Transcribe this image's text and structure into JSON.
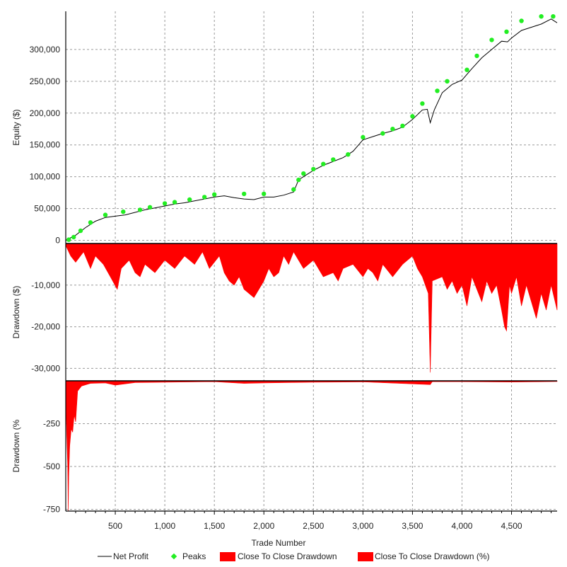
{
  "chart_data": {
    "type": "line",
    "xlabel": "Trade Number",
    "xlim": [
      0,
      4960
    ],
    "xticks": [
      500,
      1000,
      1500,
      2000,
      2500,
      3000,
      3500,
      4000,
      4500
    ],
    "xtick_labels": [
      "500",
      "1,000",
      "1,500",
      "2,000",
      "2,500",
      "3,000",
      "3,500",
      "4,000",
      "4,500"
    ],
    "legend": {
      "placement": "bottom",
      "entries": [
        "Net Profit",
        "Peaks",
        "Close To Close Drawdown",
        "Close To Close Drawdown (%)"
      ]
    },
    "colors": {
      "net_profit": "#000000",
      "peaks": "#22ee22",
      "drawdown": "#ff0000"
    },
    "panels": [
      {
        "ylabel": "Equity ($)",
        "ylim": [
          -5000,
          360000
        ],
        "yticks": [
          0,
          50000,
          100000,
          150000,
          200000,
          250000,
          300000
        ],
        "ytick_labels": [
          "0",
          "50,000",
          "100,000",
          "150,000",
          "200,000",
          "250,000",
          "300,000"
        ],
        "series": [
          {
            "name": "Net Profit",
            "type": "line",
            "points": [
              [
                0,
                0
              ],
              [
                100,
                8000
              ],
              [
                200,
                20000
              ],
              [
                300,
                30000
              ],
              [
                400,
                36000
              ],
              [
                500,
                38000
              ],
              [
                600,
                40000
              ],
              [
                700,
                44000
              ],
              [
                800,
                48000
              ],
              [
                900,
                51000
              ],
              [
                1000,
                54000
              ],
              [
                1100,
                57000
              ],
              [
                1200,
                59000
              ],
              [
                1300,
                62000
              ],
              [
                1400,
                65000
              ],
              [
                1500,
                68000
              ],
              [
                1600,
                70000
              ],
              [
                1700,
                67000
              ],
              [
                1800,
                65000
              ],
              [
                1900,
                64000
              ],
              [
                2000,
                68000
              ],
              [
                2100,
                68000
              ],
              [
                2200,
                71000
              ],
              [
                2300,
                76000
              ],
              [
                2350,
                95000
              ],
              [
                2400,
                100000
              ],
              [
                2500,
                110000
              ],
              [
                2600,
                118000
              ],
              [
                2700,
                124000
              ],
              [
                2800,
                130000
              ],
              [
                2900,
                140000
              ],
              [
                3000,
                158000
              ],
              [
                3100,
                163000
              ],
              [
                3200,
                168000
              ],
              [
                3300,
                172000
              ],
              [
                3400,
                178000
              ],
              [
                3500,
                190000
              ],
              [
                3600,
                205000
              ],
              [
                3650,
                206000
              ],
              [
                3680,
                185000
              ],
              [
                3720,
                205000
              ],
              [
                3800,
                232000
              ],
              [
                3900,
                245000
              ],
              [
                4000,
                252000
              ],
              [
                4100,
                270000
              ],
              [
                4200,
                287000
              ],
              [
                4300,
                300000
              ],
              [
                4400,
                313000
              ],
              [
                4460,
                312000
              ],
              [
                4500,
                318000
              ],
              [
                4600,
                330000
              ],
              [
                4700,
                335000
              ],
              [
                4800,
                340000
              ],
              [
                4900,
                348000
              ],
              [
                4960,
                342000
              ]
            ]
          },
          {
            "name": "Peaks",
            "type": "scatter",
            "points": [
              [
                30,
                1000
              ],
              [
                80,
                5000
              ],
              [
                150,
                15000
              ],
              [
                250,
                28000
              ],
              [
                400,
                40000
              ],
              [
                580,
                45000
              ],
              [
                750,
                48000
              ],
              [
                850,
                52000
              ],
              [
                1000,
                58000
              ],
              [
                1100,
                60000
              ],
              [
                1250,
                64000
              ],
              [
                1400,
                68000
              ],
              [
                1500,
                72000
              ],
              [
                1800,
                73000
              ],
              [
                2000,
                73000
              ],
              [
                2300,
                80000
              ],
              [
                2350,
                95000
              ],
              [
                2400,
                105000
              ],
              [
                2500,
                112000
              ],
              [
                2600,
                120000
              ],
              [
                2700,
                127000
              ],
              [
                2850,
                135000
              ],
              [
                3000,
                162000
              ],
              [
                3200,
                168000
              ],
              [
                3300,
                175000
              ],
              [
                3400,
                180000
              ],
              [
                3500,
                195000
              ],
              [
                3600,
                215000
              ],
              [
                3750,
                235000
              ],
              [
                3850,
                250000
              ],
              [
                4050,
                268000
              ],
              [
                4150,
                290000
              ],
              [
                4300,
                315000
              ],
              [
                4450,
                328000
              ],
              [
                4600,
                345000
              ],
              [
                4800,
                352000
              ],
              [
                4920,
                352000
              ]
            ]
          }
        ]
      },
      {
        "ylabel": "Drawdown ($)",
        "ylim": [
          -33000,
          0
        ],
        "yticks": [
          -10000,
          -20000,
          -30000
        ],
        "ytick_labels": [
          "-10,000",
          "-20,000",
          "-30,000"
        ],
        "series": [
          {
            "name": "Close To Close Drawdown",
            "type": "area",
            "points": [
              [
                0,
                -500
              ],
              [
                50,
                -3000
              ],
              [
                100,
                -4500
              ],
              [
                180,
                -2000
              ],
              [
                250,
                -6000
              ],
              [
                300,
                -3000
              ],
              [
                380,
                -5000
              ],
              [
                450,
                -8000
              ],
              [
                520,
                -11000
              ],
              [
                560,
                -6000
              ],
              [
                640,
                -4000
              ],
              [
                700,
                -7000
              ],
              [
                750,
                -8000
              ],
              [
                800,
                -5000
              ],
              [
                900,
                -7000
              ],
              [
                1000,
                -4000
              ],
              [
                1100,
                -6000
              ],
              [
                1200,
                -3000
              ],
              [
                1300,
                -5000
              ],
              [
                1380,
                -2000
              ],
              [
                1450,
                -6000
              ],
              [
                1550,
                -3000
              ],
              [
                1600,
                -7000
              ],
              [
                1650,
                -9000
              ],
              [
                1700,
                -10000
              ],
              [
                1750,
                -8000
              ],
              [
                1800,
                -11000
              ],
              [
                1850,
                -12000
              ],
              [
                1900,
                -13000
              ],
              [
                1950,
                -11000
              ],
              [
                2000,
                -9000
              ],
              [
                2050,
                -6000
              ],
              [
                2100,
                -8000
              ],
              [
                2150,
                -7000
              ],
              [
                2200,
                -3000
              ],
              [
                2250,
                -5000
              ],
              [
                2300,
                -2000
              ],
              [
                2400,
                -6000
              ],
              [
                2500,
                -4000
              ],
              [
                2600,
                -8000
              ],
              [
                2700,
                -7000
              ],
              [
                2750,
                -9000
              ],
              [
                2800,
                -6000
              ],
              [
                2900,
                -5000
              ],
              [
                3000,
                -8000
              ],
              [
                3050,
                -6000
              ],
              [
                3100,
                -7000
              ],
              [
                3150,
                -9000
              ],
              [
                3200,
                -5000
              ],
              [
                3300,
                -8000
              ],
              [
                3400,
                -5000
              ],
              [
                3500,
                -3000
              ],
              [
                3550,
                -6000
              ],
              [
                3600,
                -8000
              ],
              [
                3660,
                -12000
              ],
              [
                3680,
                -31000
              ],
              [
                3700,
                -9000
              ],
              [
                3800,
                -8000
              ],
              [
                3850,
                -11000
              ],
              [
                3900,
                -9000
              ],
              [
                3950,
                -12000
              ],
              [
                4000,
                -10000
              ],
              [
                4050,
                -15000
              ],
              [
                4100,
                -8000
              ],
              [
                4150,
                -11000
              ],
              [
                4200,
                -14000
              ],
              [
                4250,
                -9000
              ],
              [
                4300,
                -12000
              ],
              [
                4350,
                -10000
              ],
              [
                4400,
                -16000
              ],
              [
                4430,
                -20000
              ],
              [
                4450,
                -21000
              ],
              [
                4480,
                -10000
              ],
              [
                4500,
                -12000
              ],
              [
                4550,
                -8000
              ],
              [
                4600,
                -15000
              ],
              [
                4650,
                -10000
              ],
              [
                4700,
                -14000
              ],
              [
                4750,
                -18000
              ],
              [
                4800,
                -12000
              ],
              [
                4850,
                -16000
              ],
              [
                4900,
                -10000
              ],
              [
                4960,
                -16000
              ]
            ]
          }
        ]
      },
      {
        "ylabel": "Drawdown (%",
        "ylim": [
          -760,
          0
        ],
        "yticks": [
          -250,
          -500,
          -750
        ],
        "ytick_labels": [
          "-250",
          "-500",
          "-750"
        ],
        "series": [
          {
            "name": "Close To Close Drawdown (%)",
            "type": "area",
            "points": [
              [
                0,
                -80
              ],
              [
                10,
                -320
              ],
              [
                20,
                -500
              ],
              [
                25,
                -760
              ],
              [
                30,
                -560
              ],
              [
                40,
                -380
              ],
              [
                55,
                -280
              ],
              [
                70,
                -300
              ],
              [
                85,
                -200
              ],
              [
                100,
                -240
              ],
              [
                120,
                -60
              ],
              [
                160,
                -30
              ],
              [
                250,
                -15
              ],
              [
                400,
                -12
              ],
              [
                500,
                -25
              ],
              [
                700,
                -10
              ],
              [
                1000,
                -8
              ],
              [
                1500,
                -5
              ],
              [
                1800,
                -15
              ],
              [
                2000,
                -12
              ],
              [
                2500,
                -8
              ],
              [
                3000,
                -6
              ],
              [
                3680,
                -22
              ],
              [
                3700,
                -5
              ],
              [
                4000,
                -5
              ],
              [
                4500,
                -7
              ],
              [
                4960,
                -4
              ]
            ]
          }
        ]
      }
    ]
  }
}
